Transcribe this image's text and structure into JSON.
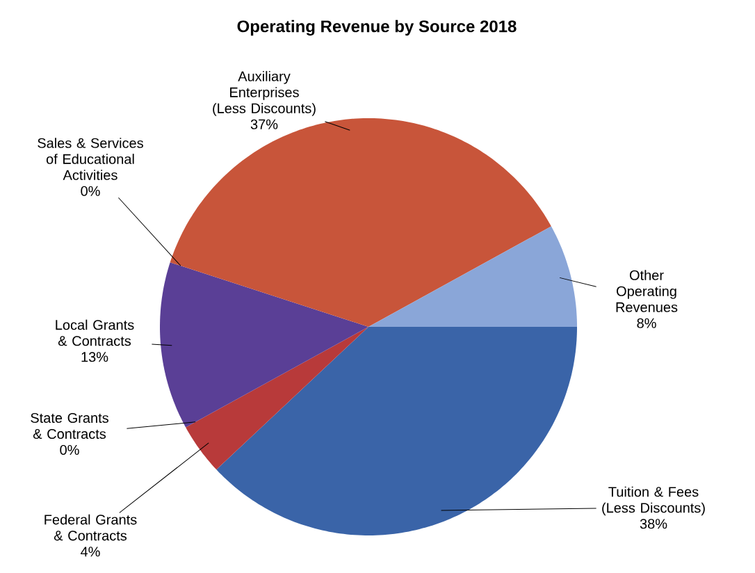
{
  "chart_data": {
    "type": "pie",
    "title": "Operating Revenue by Source 2018",
    "categories": [
      "Tuition & Fees (Less Discounts)",
      "Federal Grants & Contracts",
      "State Grants & Contracts",
      "Local Grants & Contracts",
      "Sales & Services of Educational Activities",
      "Auxiliary Enterprises (Less Discounts)",
      "Other Operating Revenues"
    ],
    "values": [
      38,
      4,
      0,
      13,
      0,
      37,
      8
    ],
    "value_labels": [
      "38%",
      "4%",
      "0%",
      "13%",
      "0%",
      "37%",
      "8%"
    ],
    "colors": [
      "#3a64a8",
      "#b83a3a",
      "#a04040",
      "#5a3f96",
      "#4a9a8a",
      "#c8553a",
      "#8aa6d8"
    ]
  }
}
